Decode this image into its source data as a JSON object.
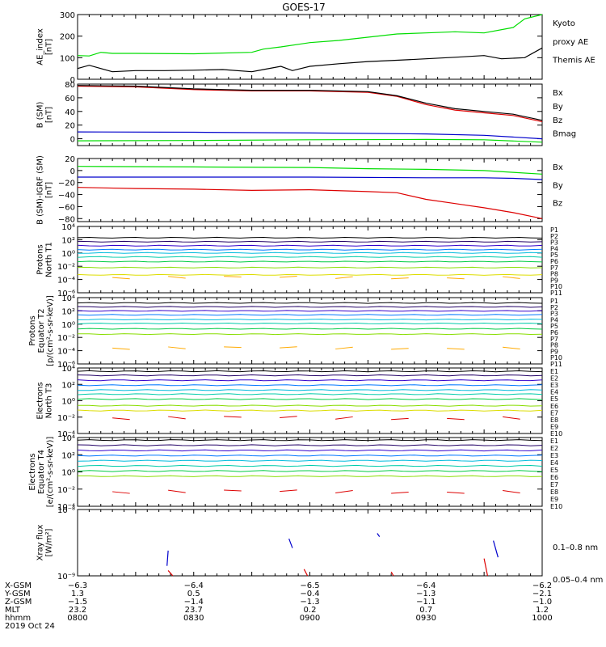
{
  "title": "GOES-17",
  "colors": {
    "black": "#000000",
    "green": "#00dd00",
    "blue": "#0000cc",
    "red": "#dd0000",
    "flux": [
      "#000000",
      "#220066",
      "#3300cc",
      "#0077ff",
      "#00bbdd",
      "#00ccaa",
      "#00cc44",
      "#88dd00",
      "#dddd00",
      "#ffaa00",
      "#ff6600",
      "#dd0000"
    ]
  },
  "chart_data": [
    {
      "id": "ae",
      "type": "line",
      "ylabel": [
        "AE_index",
        "[nT]"
      ],
      "ylim": [
        0,
        300
      ],
      "yticks": [
        0,
        100,
        200,
        300
      ],
      "yticklabels": [
        "0",
        "100",
        "200",
        "300"
      ],
      "legend": [
        {
          "text": "Kyoto",
          "color": "green"
        },
        {
          "text": "proxy AE",
          "color": "green"
        },
        {
          "text": "Themis AE",
          "color": "black"
        }
      ],
      "series": [
        {
          "name": "Kyoto proxy AE",
          "color": "green",
          "x": [
            0,
            0.1,
            0.2,
            0.3,
            0.5,
            1.0,
            1.5,
            1.6,
            1.75,
            2.0,
            2.25,
            2.5,
            2.75,
            3.0,
            3.25,
            3.5,
            3.75,
            3.85,
            4.0
          ],
          "y": [
            110,
            108,
            125,
            120,
            120,
            118,
            125,
            140,
            150,
            170,
            180,
            195,
            210,
            215,
            220,
            215,
            240,
            280,
            300
          ]
        },
        {
          "name": "Themis AE",
          "color": "black",
          "x": [
            0,
            0.1,
            0.3,
            0.5,
            0.75,
            1.0,
            1.25,
            1.5,
            1.6,
            1.75,
            1.85,
            2.0,
            2.25,
            2.5,
            2.75,
            3.0,
            3.25,
            3.5,
            3.65,
            3.85,
            4.0
          ],
          "y": [
            50,
            65,
            35,
            40,
            40,
            42,
            45,
            35,
            45,
            60,
            40,
            60,
            72,
            82,
            88,
            95,
            102,
            110,
            95,
            100,
            145
          ]
        }
      ]
    },
    {
      "id": "b_sm",
      "type": "line",
      "ylabel": [
        "B (SM)",
        "[nT]"
      ],
      "ylim": [
        -10,
        80
      ],
      "yticks": [
        0,
        20,
        40,
        60,
        80
      ],
      "yticklabels": [
        "0",
        "20",
        "40",
        "60",
        "80"
      ],
      "legend": [
        {
          "text": "Bx",
          "color": "blue"
        },
        {
          "text": "By",
          "color": "green"
        },
        {
          "text": "Bz",
          "color": "red"
        },
        {
          "text": "Bmag",
          "color": "black"
        }
      ],
      "series": [
        {
          "name": "Bx",
          "color": "blue",
          "x": [
            0,
            1,
            2,
            3,
            3.5,
            4.0
          ],
          "y": [
            10,
            9.5,
            8.5,
            7,
            5,
            0
          ]
        },
        {
          "name": "By",
          "color": "green",
          "x": [
            0,
            1,
            2,
            3,
            3.5,
            4.0
          ],
          "y": [
            -3,
            -2.5,
            -1.5,
            -1,
            -1.5,
            -5
          ]
        },
        {
          "name": "Bz",
          "color": "red",
          "x": [
            0,
            0.5,
            1.0,
            1.5,
            2.0,
            2.5,
            2.75,
            3.0,
            3.25,
            3.5,
            3.75,
            4.0
          ],
          "y": [
            77,
            76,
            72,
            70,
            70,
            68,
            62,
            50,
            42,
            38,
            34,
            25
          ]
        },
        {
          "name": "Bmag",
          "color": "black",
          "x": [
            0,
            0.5,
            1.0,
            1.5,
            2.0,
            2.5,
            2.75,
            3.0,
            3.25,
            3.5,
            3.75,
            4.0
          ],
          "y": [
            78,
            77,
            73,
            71,
            71,
            69,
            63,
            52,
            44,
            40,
            36,
            27
          ]
        }
      ]
    },
    {
      "id": "b_igrf",
      "type": "line",
      "ylabel": [
        "B (SM)-IGRF (SM)",
        "[nT]"
      ],
      "ylim": [
        -85,
        20
      ],
      "yticks": [
        -80,
        -60,
        -40,
        -20,
        0,
        20
      ],
      "yticklabels": [
        "−80",
        "−60",
        "−40",
        "−20",
        "0",
        "20"
      ],
      "legend": [
        {
          "text": "Bx",
          "color": "blue"
        },
        {
          "text": "By",
          "color": "green"
        },
        {
          "text": "Bz",
          "color": "red"
        }
      ],
      "series": [
        {
          "name": "By",
          "color": "green",
          "x": [
            0,
            1,
            2,
            2.5,
            3,
            3.5,
            3.75,
            4.0
          ],
          "y": [
            7,
            6,
            5,
            3,
            2,
            0,
            -3,
            -6
          ]
        },
        {
          "name": "Bx",
          "color": "blue",
          "x": [
            0,
            1,
            2,
            3,
            3.5,
            3.75,
            4.0
          ],
          "y": [
            -11,
            -11,
            -11,
            -12,
            -12,
            -13,
            -15
          ]
        },
        {
          "name": "Bz",
          "color": "red",
          "x": [
            0,
            0.5,
            1.0,
            1.5,
            2.0,
            2.5,
            2.75,
            3.0,
            3.25,
            3.5,
            3.75,
            4.0
          ],
          "y": [
            -28,
            -30,
            -31,
            -33,
            -32,
            -35,
            -37,
            -48,
            -55,
            -62,
            -70,
            -80
          ]
        }
      ]
    },
    {
      "id": "protons_t1",
      "type": "log-multiline",
      "ylabel": [
        "Protons",
        "North T1"
      ],
      "logmin": -6,
      "logmax": 4,
      "yticks": [
        -6,
        -4,
        -2,
        0,
        2,
        4
      ],
      "yticklabels": [
        "10⁻⁶",
        "10⁻⁴",
        "10⁻²",
        "10⁰",
        "10²",
        "10⁴"
      ],
      "legend": [
        "P1",
        "P2",
        "P3",
        "P4",
        "P5",
        "P6",
        "P7",
        "P8",
        "P9",
        "P10",
        "P11"
      ],
      "levels": [
        2.3,
        1.7,
        1.1,
        0.5,
        0.0,
        -0.6,
        -1.3,
        -2.2,
        -3.3
      ],
      "sparse": [
        {
          "level": -3.7,
          "color_index": 9
        }
      ]
    },
    {
      "id": "protons_t2",
      "type": "log-multiline",
      "ylabel": [
        "Protons",
        "Equator T2",
        "[p/(cm²-s-sr-keV)]"
      ],
      "logmin": -6,
      "logmax": 4,
      "yticks": [
        -6,
        -4,
        -2,
        0,
        2,
        4
      ],
      "yticklabels": [
        "10⁻⁶",
        "10⁻⁴",
        "10⁻²",
        "10⁰",
        "10²",
        "10⁴"
      ],
      "legend": [
        "P1",
        "P2",
        "P3",
        "P4",
        "P5",
        "P6",
        "P7",
        "P8",
        "P9",
        "P10",
        "P11"
      ],
      "levels": [
        3.2,
        2.6,
        2.0,
        1.4,
        0.7,
        0.1,
        -0.7,
        -1.5
      ],
      "sparse": [
        {
          "level": -3.6,
          "color_index": 9
        }
      ]
    },
    {
      "id": "electrons_t3",
      "type": "log-multiline",
      "ylabel": [
        "Electrons",
        "North T3"
      ],
      "logmin": -4,
      "logmax": 4,
      "yticks": [
        -4,
        -2,
        0,
        2,
        4
      ],
      "yticklabels": [
        "10⁻⁴",
        "10⁻²",
        "10⁰",
        "10²",
        "10⁴"
      ],
      "legend": [
        "E1",
        "E2",
        "E3",
        "E4",
        "E5",
        "E6",
        "E7",
        "E8",
        "E9",
        "E10"
      ],
      "levels": [
        3.6,
        3.1,
        2.5,
        1.9,
        1.3,
        0.8,
        0.2,
        -0.6,
        -1.2
      ],
      "sparse": [
        {
          "level": -2.1,
          "color_index": 11
        }
      ]
    },
    {
      "id": "electrons_t4",
      "type": "log-multiline",
      "ylabel": [
        "Electrons",
        "Equator T4",
        "[e/(cm²-s-sr-keV)]"
      ],
      "logmin": -4,
      "logmax": 4,
      "yticks": [
        -4,
        -2,
        0,
        2,
        4
      ],
      "yticklabels": [
        "10⁻⁴",
        "10⁻²",
        "10⁰",
        "10²",
        "10⁴"
      ],
      "legend": [
        "E1",
        "E2",
        "E3",
        "E4",
        "E5",
        "E6",
        "E7",
        "E8",
        "E9",
        "E10"
      ],
      "levels": [
        3.7,
        3.1,
        2.5,
        1.9,
        1.3,
        0.7,
        0.1,
        -0.5
      ],
      "sparse": [
        {
          "level": -2.3,
          "color_index": 11
        }
      ]
    },
    {
      "id": "xray",
      "type": "log-segments",
      "ylabel": [
        "Xray flux",
        "[W/m²]"
      ],
      "logmin": -9,
      "logmax": -8,
      "yticks": [
        -9,
        -8
      ],
      "yticklabels": [
        "10⁻⁹",
        "10⁻⁸"
      ],
      "legend": [
        {
          "text": "0.1–0.8 nm",
          "color": "red"
        },
        {
          "text": "0.05–0.4 nm",
          "color": "blue"
        }
      ],
      "segments": [
        {
          "series": "0.05–0.4 nm",
          "color": "blue",
          "x": [
            0.78,
            0.77
          ],
          "y": [
            -8.62,
            -8.85
          ]
        },
        {
          "series": "0.05–0.4 nm",
          "color": "blue",
          "x": [
            1.82,
            1.85
          ],
          "y": [
            -8.44,
            -8.58
          ]
        },
        {
          "series": "0.05–0.4 nm",
          "color": "blue",
          "x": [
            2.58,
            2.6
          ],
          "y": [
            -8.36,
            -8.41
          ]
        },
        {
          "series": "0.05–0.4 nm",
          "color": "blue",
          "x": [
            3.58,
            3.62
          ],
          "y": [
            -8.47,
            -8.72
          ]
        },
        {
          "series": "0.1–0.8 nm",
          "color": "red",
          "x": [
            0.78,
            0.82
          ],
          "y": [
            -8.92,
            -9.0
          ]
        },
        {
          "series": "0.1–0.8 nm",
          "color": "red",
          "x": [
            1.95,
            1.98
          ],
          "y": [
            -8.9,
            -9.0
          ]
        },
        {
          "series": "0.1–0.8 nm",
          "color": "red",
          "x": [
            2.7,
            2.72
          ],
          "y": [
            -8.94,
            -9.0
          ]
        },
        {
          "series": "0.1–0.8 nm",
          "color": "red",
          "x": [
            3.5,
            3.53
          ],
          "y": [
            -8.74,
            -9.0
          ]
        }
      ]
    }
  ],
  "footer": {
    "rows": [
      {
        "label": "X-GSM",
        "values": [
          "−6.3",
          "−6.4",
          "−6.5",
          "−6.4",
          "−6.2"
        ]
      },
      {
        "label": "Y-GSM",
        "values": [
          "1.3",
          "0.5",
          "−0.4",
          "−1.3",
          "−2.1"
        ]
      },
      {
        "label": "Z-GSM",
        "values": [
          "−1.5",
          "−1.4",
          "−1.3",
          "−1.1",
          "−1.0"
        ]
      },
      {
        "label": "MLT",
        "values": [
          "23.2",
          "23.7",
          "0.2",
          "0.7",
          "1.2"
        ]
      },
      {
        "label": "hhmm",
        "values": [
          "0800",
          "0830",
          "0900",
          "0930",
          "1000"
        ]
      }
    ],
    "date": "2019 Oct 24"
  }
}
